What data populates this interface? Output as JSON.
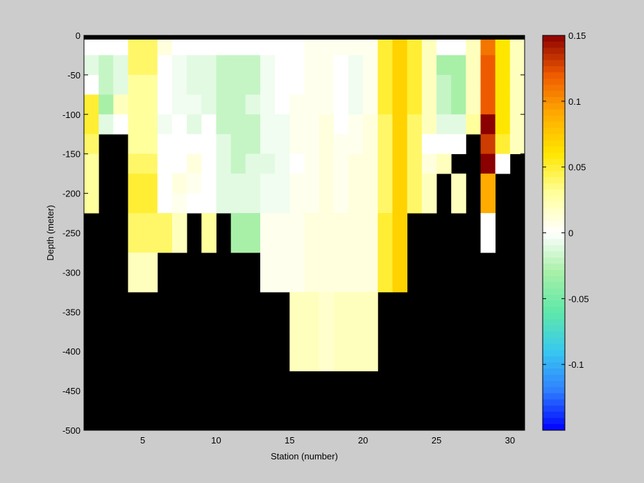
{
  "chart_data": {
    "type": "heatmap",
    "title": "",
    "xlabel": "Station (number)",
    "ylabel": "Depth (meter)",
    "xlim": [
      1,
      31
    ],
    "ylim": [
      -500,
      0
    ],
    "xticks": [
      5,
      10,
      15,
      20,
      25,
      30
    ],
    "yticks": [
      0,
      -50,
      -100,
      -150,
      -200,
      -250,
      -300,
      -350,
      -400,
      -450,
      -500
    ],
    "x_start": 1,
    "cell_width": 1,
    "depth_step": 25,
    "depth_start": 0,
    "clim": [
      -0.15,
      0.15
    ],
    "colorbar_ticks": [
      0.15,
      0.1,
      0.05,
      0,
      -0.05,
      -0.1
    ],
    "colormap": [
      "#0000ff",
      "#2f7fff",
      "#38c8f0",
      "#5fe8a8",
      "#a8f0a8",
      "#ffffff",
      "#ffff9c",
      "#ffe600",
      "#ffab00",
      "#ee5a00",
      "#8b0000"
    ],
    "nan_color": "#000000",
    "missing_note": "null = no data (below sea floor)",
    "values": [
      [
        0.0,
        0.0,
        0.0,
        0.04,
        0.04,
        0.01,
        0.0,
        0.0,
        0.0,
        0.0,
        0.0,
        0.0,
        0.0,
        0.0,
        0.0,
        0.005,
        0.005,
        0.005,
        0.005,
        0.005,
        0.05,
        0.07,
        0.05,
        0.02,
        0.0,
        0.0,
        0.02,
        0.11,
        0.06,
        0.02
      ],
      [
        -0.01,
        -0.02,
        -0.01,
        0.04,
        0.04,
        0.0,
        -0.005,
        -0.01,
        -0.01,
        -0.02,
        -0.02,
        -0.02,
        -0.005,
        0.0,
        0.0,
        0.005,
        0.005,
        0.0,
        -0.005,
        0.005,
        0.05,
        0.07,
        0.05,
        0.02,
        -0.03,
        -0.03,
        0.02,
        0.12,
        0.06,
        0.02
      ],
      [
        0.0,
        -0.02,
        -0.01,
        0.03,
        0.03,
        0.0,
        -0.005,
        -0.01,
        -0.01,
        -0.02,
        -0.02,
        -0.02,
        -0.005,
        0.0,
        0.0,
        0.005,
        0.005,
        0.0,
        -0.005,
        0.005,
        0.05,
        0.07,
        0.05,
        0.02,
        -0.02,
        -0.03,
        0.02,
        0.12,
        0.06,
        0.02
      ],
      [
        0.05,
        -0.03,
        0.02,
        0.03,
        0.03,
        0.0,
        -0.005,
        -0.005,
        -0.01,
        -0.02,
        -0.02,
        -0.01,
        -0.005,
        0.0,
        0.005,
        0.005,
        0.005,
        0.0,
        -0.005,
        0.005,
        0.05,
        0.07,
        0.05,
        0.02,
        -0.02,
        -0.03,
        0.02,
        0.12,
        0.06,
        0.02
      ],
      [
        0.05,
        -0.01,
        0.0,
        0.03,
        0.03,
        -0.005,
        0.0,
        -0.01,
        0.0,
        -0.02,
        -0.02,
        -0.02,
        -0.005,
        -0.005,
        0.005,
        0.005,
        0.01,
        0.0,
        0.005,
        0.01,
        0.04,
        0.07,
        0.04,
        0.02,
        -0.01,
        -0.01,
        0.03,
        0.15,
        0.06,
        0.02
      ],
      [
        0.04,
        null,
        null,
        0.03,
        0.03,
        0.0,
        0.0,
        0.0,
        0.0,
        -0.01,
        -0.02,
        -0.02,
        -0.005,
        -0.005,
        0.005,
        0.005,
        0.01,
        0.005,
        0.005,
        0.01,
        0.04,
        0.07,
        0.04,
        0.0,
        0.0,
        0.0,
        null,
        0.13,
        0.05,
        0.02
      ],
      [
        0.03,
        null,
        null,
        0.04,
        0.04,
        0.0,
        0.0,
        0.01,
        0.0,
        -0.01,
        -0.02,
        -0.01,
        -0.01,
        -0.005,
        0.0,
        0.005,
        0.01,
        0.005,
        0.01,
        0.01,
        0.04,
        0.07,
        0.04,
        0.01,
        0.02,
        null,
        null,
        0.15,
        0.0,
        null
      ],
      [
        0.03,
        null,
        null,
        0.05,
        0.05,
        0.0,
        0.01,
        0.005,
        0.0,
        -0.01,
        -0.01,
        -0.01,
        -0.005,
        -0.005,
        0.005,
        0.005,
        0.01,
        0.005,
        0.01,
        0.01,
        0.04,
        0.07,
        0.04,
        0.02,
        null,
        0.02,
        null,
        0.09,
        null,
        null
      ],
      [
        0.03,
        null,
        null,
        0.05,
        0.05,
        0.0,
        0.005,
        0.0,
        0.0,
        -0.01,
        -0.01,
        -0.01,
        -0.005,
        -0.005,
        0.005,
        0.005,
        0.01,
        0.005,
        0.01,
        0.01,
        0.04,
        0.07,
        0.04,
        0.02,
        null,
        0.02,
        null,
        0.09,
        null,
        null
      ],
      [
        null,
        null,
        null,
        0.04,
        0.04,
        0.04,
        0.02,
        null,
        0.03,
        null,
        -0.03,
        -0.03,
        0.005,
        0.005,
        0.005,
        0.01,
        0.01,
        0.01,
        0.01,
        0.01,
        0.05,
        0.07,
        null,
        null,
        null,
        null,
        null,
        0.0,
        null,
        null
      ],
      [
        null,
        null,
        null,
        0.04,
        0.04,
        0.04,
        0.02,
        null,
        0.03,
        null,
        -0.03,
        -0.03,
        0.005,
        0.005,
        0.005,
        0.01,
        0.01,
        0.01,
        0.01,
        0.01,
        0.05,
        0.07,
        null,
        null,
        null,
        null,
        null,
        0.0,
        null,
        null
      ],
      [
        null,
        null,
        null,
        0.02,
        0.02,
        null,
        null,
        null,
        null,
        null,
        null,
        null,
        0.005,
        0.005,
        0.005,
        0.01,
        0.01,
        0.01,
        0.01,
        0.01,
        0.05,
        0.07,
        null,
        null,
        null,
        null,
        null,
        null,
        null,
        null
      ],
      [
        null,
        null,
        null,
        0.02,
        0.02,
        null,
        null,
        null,
        null,
        null,
        null,
        null,
        0.005,
        0.005,
        0.005,
        0.01,
        0.01,
        0.01,
        0.01,
        0.01,
        0.05,
        0.07,
        null,
        null,
        null,
        null,
        null,
        null,
        null,
        null
      ],
      [
        null,
        null,
        null,
        null,
        null,
        null,
        null,
        null,
        null,
        null,
        null,
        null,
        null,
        null,
        0.02,
        0.02,
        0.015,
        0.02,
        0.02,
        0.02,
        null,
        null,
        null,
        null,
        null,
        null,
        null,
        null,
        null,
        null
      ],
      [
        null,
        null,
        null,
        null,
        null,
        null,
        null,
        null,
        null,
        null,
        null,
        null,
        null,
        null,
        0.02,
        0.02,
        0.015,
        0.02,
        0.02,
        0.02,
        null,
        null,
        null,
        null,
        null,
        null,
        null,
        null,
        null,
        null
      ],
      [
        null,
        null,
        null,
        null,
        null,
        null,
        null,
        null,
        null,
        null,
        null,
        null,
        null,
        null,
        0.02,
        0.02,
        0.015,
        0.02,
        0.02,
        0.02,
        null,
        null,
        null,
        null,
        null,
        null,
        null,
        null,
        null,
        null
      ],
      [
        null,
        null,
        null,
        null,
        null,
        null,
        null,
        null,
        null,
        null,
        null,
        null,
        null,
        null,
        0.02,
        0.02,
        0.015,
        0.02,
        0.02,
        0.02,
        null,
        null,
        null,
        null,
        null,
        null,
        null,
        null,
        null,
        null
      ]
    ]
  }
}
